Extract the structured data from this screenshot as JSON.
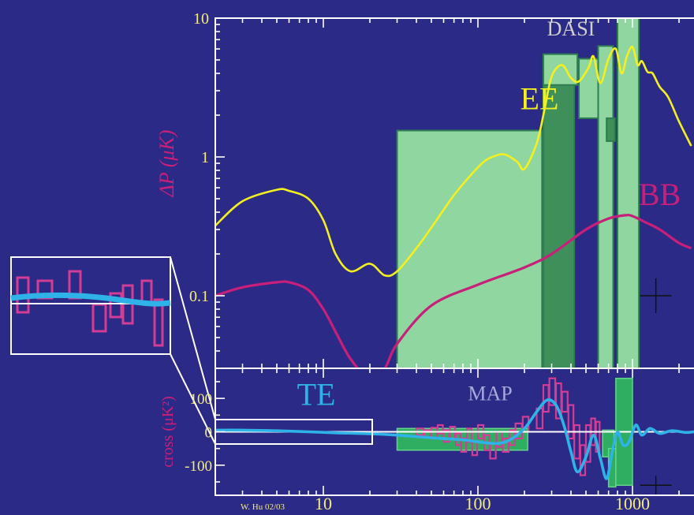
{
  "credit": "W. Hu 02/03",
  "colors": {
    "background": "#2b2a86",
    "axes": "#ffffff",
    "tick_labels": "#f5ef7a",
    "ee_line": "#f4f020",
    "bb_line": "#c8207a",
    "te_line": "#2fb2e8",
    "dasi_band": "#8fd6a0",
    "dasi_band_dark": "#3f8f5a",
    "map_box": "#2fae62",
    "map_box_edge": "#66d48a",
    "pink_box": "#d23d96",
    "ylabel": "#c8207a"
  },
  "chart_data": [
    {
      "type": "line",
      "scale": "log-log",
      "ylabel": "ΔP (μK)",
      "xlim": [
        2,
        2500
      ],
      "ylim": [
        0.03,
        10
      ],
      "y_ticks": [
        {
          "value": 10,
          "label": "10"
        },
        {
          "value": 1,
          "label": "1"
        },
        {
          "value": 0.1,
          "label": "0.1"
        }
      ],
      "x_major_ticks": [
        10,
        100,
        1000
      ],
      "series": [
        {
          "name": "EE",
          "x": [
            2,
            3,
            5,
            6,
            8,
            10,
            12,
            15,
            20,
            25,
            30,
            40,
            50,
            70,
            90,
            110,
            130,
            150,
            180,
            200,
            240,
            270,
            300,
            350,
            400,
            450,
            520,
            560,
            620,
            700,
            780,
            850,
            920,
            1000,
            1080,
            1150,
            1250,
            1350,
            1500,
            1700,
            2000,
            2400
          ],
          "y": [
            0.32,
            0.48,
            0.58,
            0.57,
            0.5,
            0.35,
            0.2,
            0.15,
            0.17,
            0.14,
            0.15,
            0.22,
            0.31,
            0.53,
            0.74,
            0.93,
            1.02,
            1.04,
            0.92,
            0.82,
            1.25,
            2.2,
            3.8,
            4.6,
            3.7,
            3.5,
            4.4,
            5.3,
            3.4,
            5.1,
            6.0,
            4.0,
            5.3,
            6.2,
            4.6,
            4.9,
            4.1,
            4.0,
            3.2,
            2.7,
            1.8,
            1.2
          ]
        },
        {
          "name": "BB",
          "x": [
            2,
            3,
            5,
            6,
            8,
            10,
            12,
            15,
            20,
            25,
            30,
            50,
            100,
            200,
            300,
            500,
            700,
            900,
            1000,
            1200,
            1500,
            2000,
            2400
          ],
          "y": [
            0.1,
            0.115,
            0.125,
            0.125,
            0.11,
            0.08,
            0.055,
            0.035,
            0.025,
            0.03,
            0.045,
            0.085,
            0.12,
            0.16,
            0.2,
            0.3,
            0.36,
            0.38,
            0.375,
            0.34,
            0.3,
            0.24,
            0.22
          ]
        }
      ],
      "bands": [
        {
          "name": "DASI",
          "x": [
            30,
            260
          ],
          "y": [
            0.03,
            1.55
          ]
        },
        {
          "name": "DASI",
          "x": [
            265,
            420
          ],
          "y": [
            0.03,
            3.3
          ],
          "shade": "dark"
        },
        {
          "name": "DASI",
          "x": [
            265,
            440
          ],
          "y": [
            3.3,
            5.5
          ]
        },
        {
          "name": "DASI",
          "x": [
            450,
            600
          ],
          "y": [
            1.9,
            5.1
          ]
        },
        {
          "name": "DASI",
          "x": [
            600,
            750
          ],
          "y": [
            0.03,
            6.3
          ]
        },
        {
          "name": "DASI",
          "x": [
            680,
            770
          ],
          "y": [
            1.3,
            1.9
          ],
          "shade": "dark"
        },
        {
          "name": "DASI",
          "x": [
            800,
            1100
          ],
          "y": [
            0.03,
            10
          ]
        }
      ],
      "annotations": [
        {
          "text": "DASI",
          "x": 400,
          "y": 7.5,
          "color": "#cfcfcf"
        },
        {
          "text": "EE",
          "x": 250,
          "y": 2.2,
          "color": "#f4f020"
        },
        {
          "text": "BB",
          "x": 1500,
          "y": 0.45,
          "color": "#c8207a"
        }
      ]
    },
    {
      "type": "line",
      "scale": "log-x",
      "ylabel": "cross (μK²)",
      "xlim": [
        2,
        2500
      ],
      "ylim": [
        -190,
        190
      ],
      "y_ticks": [
        {
          "value": 100,
          "label": "100"
        },
        {
          "value": 0,
          "label": "0"
        },
        {
          "value": -100,
          "label": "-100"
        }
      ],
      "x_ticks": [
        {
          "value": 10,
          "label": "10"
        },
        {
          "value": 100,
          "label": "100"
        },
        {
          "value": 1000,
          "label": "1000"
        }
      ],
      "series": [
        {
          "name": "TE",
          "x": [
            2,
            3,
            5,
            8,
            12,
            20,
            30,
            50,
            80,
            100,
            130,
            160,
            200,
            240,
            280,
            320,
            360,
            400,
            440,
            500,
            560,
            620,
            680,
            740,
            800,
            870,
            950,
            1050,
            1150,
            1300,
            1500,
            1800,
            2200,
            2500
          ],
          "y": [
            5,
            5,
            3,
            0,
            -3,
            -6,
            -10,
            -18,
            -24,
            -30,
            -35,
            -25,
            10,
            60,
            95,
            80,
            20,
            -60,
            -120,
            -75,
            -10,
            -80,
            -140,
            -60,
            0,
            -40,
            -30,
            20,
            -10,
            10,
            -5,
            3,
            -2,
            0
          ]
        }
      ],
      "pink_bins": [
        {
          "x": [
            40,
            45
          ],
          "y": [
            -10,
            10
          ]
        },
        {
          "x": [
            45,
            50
          ],
          "y": [
            -15,
            5
          ]
        },
        {
          "x": [
            50,
            55
          ],
          "y": [
            -20,
            12
          ]
        },
        {
          "x": [
            55,
            60
          ],
          "y": [
            -5,
            20
          ]
        },
        {
          "x": [
            60,
            66
          ],
          "y": [
            -30,
            5
          ]
        },
        {
          "x": [
            66,
            72
          ],
          "y": [
            -20,
            15
          ]
        },
        {
          "x": [
            72,
            78
          ],
          "y": [
            -40,
            -5
          ]
        },
        {
          "x": [
            78,
            85
          ],
          "y": [
            -60,
            -20
          ]
        },
        {
          "x": [
            85,
            92
          ],
          "y": [
            -30,
            10
          ]
        },
        {
          "x": [
            92,
            100
          ],
          "y": [
            -70,
            -30
          ]
        },
        {
          "x": [
            100,
            110
          ],
          "y": [
            -20,
            20
          ]
        },
        {
          "x": [
            110,
            120
          ],
          "y": [
            -55,
            -10
          ]
        },
        {
          "x": [
            120,
            132
          ],
          "y": [
            -80,
            -35
          ]
        },
        {
          "x": [
            132,
            145
          ],
          "y": [
            -45,
            0
          ]
        },
        {
          "x": [
            145,
            160
          ],
          "y": [
            -60,
            -20
          ]
        },
        {
          "x": [
            160,
            175
          ],
          "y": [
            -40,
            5
          ]
        },
        {
          "x": [
            175,
            195
          ],
          "y": [
            -20,
            25
          ]
        },
        {
          "x": [
            195,
            215
          ],
          "y": [
            0,
            45
          ]
        },
        {
          "x": [
            240,
            265
          ],
          "y": [
            10,
            70
          ]
        },
        {
          "x": [
            265,
            290
          ],
          "y": [
            60,
            140
          ]
        },
        {
          "x": [
            290,
            320
          ],
          "y": [
            80,
            160
          ]
        },
        {
          "x": [
            320,
            350
          ],
          "y": [
            40,
            145
          ]
        },
        {
          "x": [
            350,
            385
          ],
          "y": [
            60,
            120
          ]
        },
        {
          "x": [
            385,
            420
          ],
          "y": [
            -20,
            80
          ]
        },
        {
          "x": [
            420,
            460
          ],
          "y": [
            -80,
            20
          ]
        },
        {
          "x": [
            460,
            500
          ],
          "y": [
            -130,
            -40
          ]
        },
        {
          "x": [
            500,
            540
          ],
          "y": [
            -90,
            20
          ]
        },
        {
          "x": [
            540,
            580
          ],
          "y": [
            -40,
            40
          ]
        },
        {
          "x": [
            580,
            620
          ],
          "y": [
            -60,
            30
          ]
        }
      ],
      "map_boxes": [
        {
          "x": [
            30,
            210
          ],
          "y": [
            -55,
            10
          ]
        },
        {
          "x": [
            640,
            760
          ],
          "y": [
            -75,
            5
          ]
        },
        {
          "x": [
            700,
            780
          ],
          "y": [
            -165,
            -50
          ]
        },
        {
          "x": [
            780,
            1000
          ],
          "y": [
            -160,
            160
          ]
        }
      ],
      "annotations": [
        {
          "text": "TE",
          "x": 9,
          "y": 80,
          "color": "#2fb2e8"
        },
        {
          "text": "MAP",
          "x": 120,
          "y": 95,
          "color": "#a9a8d8"
        }
      ]
    }
  ]
}
